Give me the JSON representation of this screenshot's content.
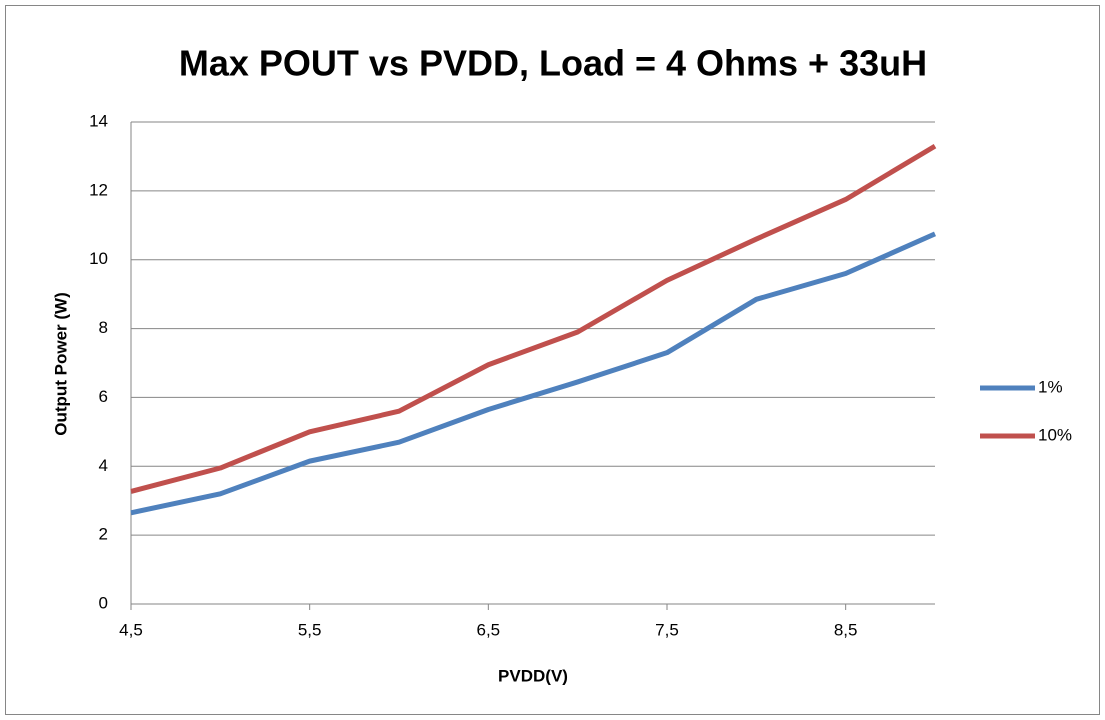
{
  "chart_data": {
    "type": "line",
    "title": "Max POUT vs PVDD, Load = 4 Ohms + 33uH",
    "x_label": "PVDD(V)",
    "y_label": "Output Power (W)",
    "categories": [
      "4,5",
      null,
      "5,5",
      null,
      "6,5",
      null,
      "7,5",
      null,
      "8,5",
      null
    ],
    "series": [
      {
        "name": "1%",
        "color": "#4f81bd",
        "values": [
          2.65,
          3.2,
          4.15,
          4.7,
          5.65,
          6.45,
          7.3,
          8.85,
          9.6,
          10.75
        ]
      },
      {
        "name": "10%",
        "color": "#c0504d",
        "values": [
          3.27,
          3.95,
          5.0,
          5.6,
          6.95,
          7.9,
          9.4,
          10.6,
          11.75,
          13.3
        ]
      }
    ],
    "ylim": [
      0,
      14
    ],
    "yticks": [
      0,
      2,
      4,
      6,
      8,
      10,
      12,
      14
    ],
    "grid": true,
    "legend": "right"
  }
}
